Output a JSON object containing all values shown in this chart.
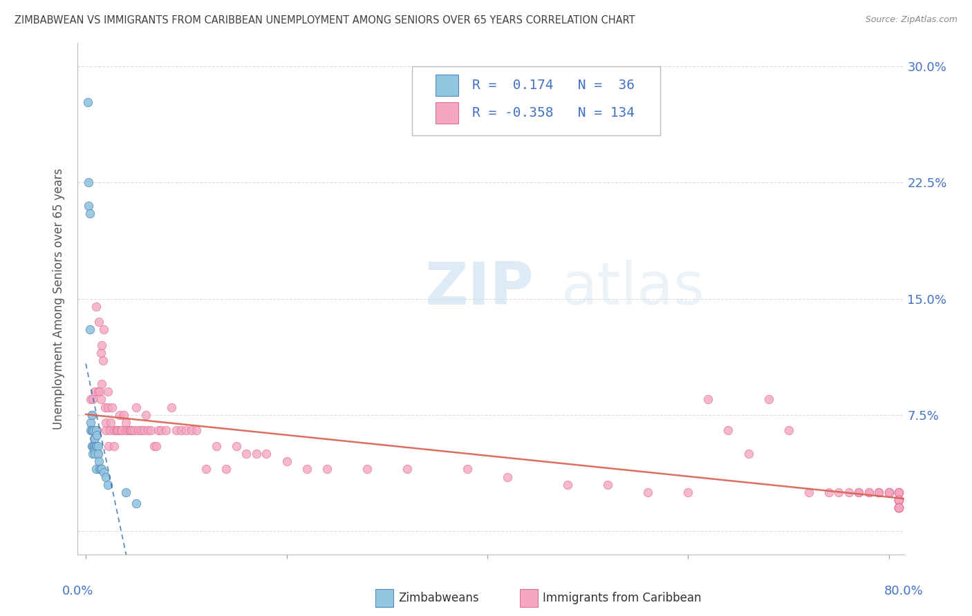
{
  "title": "ZIMBABWEAN VS IMMIGRANTS FROM CARIBBEAN UNEMPLOYMENT AMONG SENIORS OVER 65 YEARS CORRELATION CHART",
  "source": "Source: ZipAtlas.com",
  "ylabel": "Unemployment Among Seniors over 65 years",
  "ytick_labels": [
    "",
    "7.5%",
    "15.0%",
    "22.5%",
    "30.0%"
  ],
  "ytick_vals": [
    0,
    0.075,
    0.15,
    0.225,
    0.3
  ],
  "xlim": [
    -0.008,
    0.815
  ],
  "ylim": [
    -0.015,
    0.315
  ],
  "legend_blue_R": "0.174",
  "legend_blue_N": "36",
  "legend_pink_R": "-0.358",
  "legend_pink_N": "134",
  "legend_label_blue": "Zimbabweans",
  "legend_label_pink": "Immigrants from Caribbean",
  "blue_color": "#92c5de",
  "pink_color": "#f4a6c0",
  "trendline_blue_color": "#2166ac",
  "trendline_pink_color": "#d6604d",
  "watermark_zip": "ZIP",
  "watermark_atlas": "atlas",
  "title_color": "#404040",
  "axis_label_color": "#4472c4",
  "blue_scatter_x": [
    0.002,
    0.003,
    0.003,
    0.004,
    0.004,
    0.005,
    0.005,
    0.006,
    0.006,
    0.006,
    0.007,
    0.007,
    0.007,
    0.008,
    0.008,
    0.008,
    0.009,
    0.009,
    0.009,
    0.009,
    0.01,
    0.01,
    0.01,
    0.011,
    0.011,
    0.012,
    0.012,
    0.013,
    0.014,
    0.015,
    0.016,
    0.018,
    0.02,
    0.022,
    0.04,
    0.05
  ],
  "blue_scatter_y": [
    0.277,
    0.225,
    0.21,
    0.205,
    0.13,
    0.07,
    0.065,
    0.075,
    0.065,
    0.055,
    0.065,
    0.055,
    0.05,
    0.065,
    0.06,
    0.055,
    0.06,
    0.055,
    0.052,
    0.05,
    0.065,
    0.055,
    0.04,
    0.062,
    0.055,
    0.055,
    0.05,
    0.045,
    0.04,
    0.04,
    0.04,
    0.038,
    0.035,
    0.03,
    0.025,
    0.018
  ],
  "pink_scatter_x": [
    0.005,
    0.006,
    0.007,
    0.008,
    0.009,
    0.01,
    0.01,
    0.011,
    0.012,
    0.012,
    0.013,
    0.014,
    0.015,
    0.015,
    0.016,
    0.016,
    0.017,
    0.018,
    0.019,
    0.02,
    0.02,
    0.022,
    0.022,
    0.023,
    0.024,
    0.025,
    0.026,
    0.028,
    0.028,
    0.03,
    0.031,
    0.032,
    0.034,
    0.035,
    0.036,
    0.038,
    0.04,
    0.04,
    0.042,
    0.044,
    0.045,
    0.046,
    0.048,
    0.05,
    0.052,
    0.055,
    0.058,
    0.06,
    0.062,
    0.065,
    0.068,
    0.07,
    0.072,
    0.075,
    0.08,
    0.085,
    0.09,
    0.095,
    0.1,
    0.105,
    0.11,
    0.12,
    0.13,
    0.14,
    0.15,
    0.16,
    0.17,
    0.18,
    0.2,
    0.22,
    0.24,
    0.28,
    0.32,
    0.38,
    0.42,
    0.48,
    0.52,
    0.56,
    0.6,
    0.62,
    0.64,
    0.66,
    0.68,
    0.7,
    0.72,
    0.74,
    0.75,
    0.76,
    0.77,
    0.77,
    0.78,
    0.78,
    0.79,
    0.79,
    0.79,
    0.8,
    0.8,
    0.8,
    0.8,
    0.8,
    0.81,
    0.81,
    0.81,
    0.81,
    0.81,
    0.81,
    0.81,
    0.81,
    0.81,
    0.81,
    0.81,
    0.81,
    0.81,
    0.81,
    0.81,
    0.81,
    0.81,
    0.81,
    0.81,
    0.81,
    0.81,
    0.81,
    0.81,
    0.81,
    0.81,
    0.81,
    0.81,
    0.81,
    0.81,
    0.81,
    0.81,
    0.81,
    0.81
  ],
  "pink_scatter_y": [
    0.085,
    0.075,
    0.085,
    0.065,
    0.09,
    0.055,
    0.145,
    0.065,
    0.05,
    0.09,
    0.135,
    0.09,
    0.115,
    0.085,
    0.095,
    0.12,
    0.11,
    0.13,
    0.08,
    0.065,
    0.07,
    0.09,
    0.08,
    0.055,
    0.065,
    0.07,
    0.08,
    0.065,
    0.055,
    0.065,
    0.065,
    0.065,
    0.075,
    0.065,
    0.065,
    0.075,
    0.07,
    0.065,
    0.065,
    0.065,
    0.065,
    0.065,
    0.065,
    0.08,
    0.065,
    0.065,
    0.065,
    0.075,
    0.065,
    0.065,
    0.055,
    0.055,
    0.065,
    0.065,
    0.065,
    0.08,
    0.065,
    0.065,
    0.065,
    0.065,
    0.065,
    0.04,
    0.055,
    0.04,
    0.055,
    0.05,
    0.05,
    0.05,
    0.045,
    0.04,
    0.04,
    0.04,
    0.04,
    0.04,
    0.035,
    0.03,
    0.03,
    0.025,
    0.025,
    0.085,
    0.065,
    0.05,
    0.085,
    0.065,
    0.025,
    0.025,
    0.025,
    0.025,
    0.025,
    0.025,
    0.025,
    0.025,
    0.025,
    0.025,
    0.025,
    0.025,
    0.025,
    0.025,
    0.025,
    0.025,
    0.025,
    0.025,
    0.025,
    0.025,
    0.025,
    0.025,
    0.025,
    0.02,
    0.02,
    0.02,
    0.02,
    0.02,
    0.02,
    0.02,
    0.02,
    0.02,
    0.02,
    0.02,
    0.015,
    0.015,
    0.015,
    0.015,
    0.015,
    0.015,
    0.015,
    0.015,
    0.015,
    0.015,
    0.015,
    0.015,
    0.015,
    0.015,
    0.015
  ]
}
